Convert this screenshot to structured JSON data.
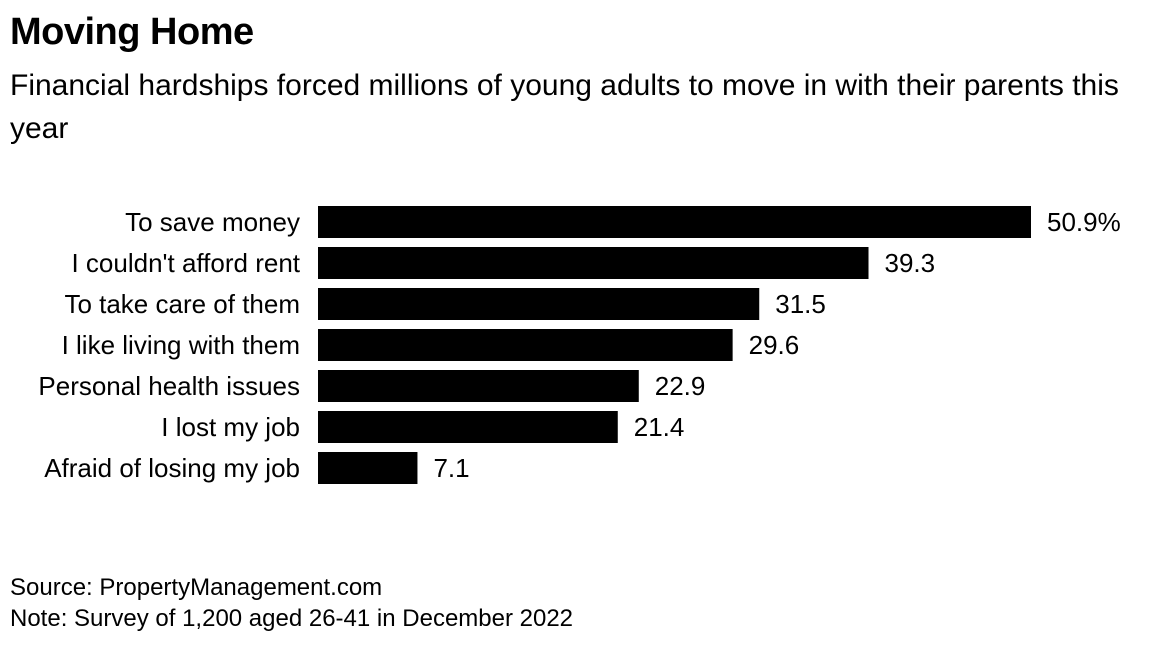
{
  "header": {
    "title": "Moving Home",
    "subtitle": "Financial hardships forced millions of young adults to move in with their parents this year"
  },
  "chart_data": {
    "type": "bar",
    "orientation": "horizontal",
    "categories": [
      "To save money",
      "I couldn't afford rent",
      "To take care of them",
      "I like living with them",
      "Personal health issues",
      "I lost my job",
      "Afraid of losing my job"
    ],
    "values": [
      50.9,
      39.3,
      31.5,
      29.6,
      22.9,
      21.4,
      7.1
    ],
    "value_labels": [
      "50.9%",
      "39.3",
      "31.5",
      "29.6",
      "22.9",
      "21.4",
      "7.1"
    ],
    "unit": "%",
    "xlim": [
      0,
      50.9
    ],
    "bar_color": "#000000",
    "grid": false,
    "legend": "none"
  },
  "footer": {
    "source": "Source: PropertyManagement.com",
    "note": "Note: Survey of 1,200 aged 26-41 in December 2022"
  }
}
